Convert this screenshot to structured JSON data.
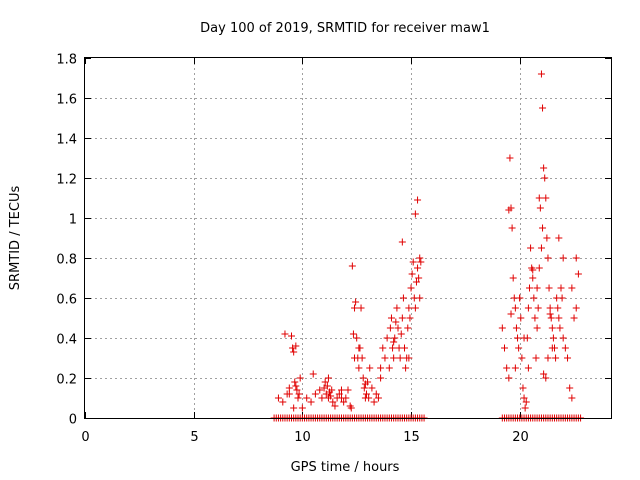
{
  "chart_data": {
    "type": "scatter",
    "title": "Day 100 of 2019, SRMTID for receiver maw1",
    "xlabel": "GPS time / hours",
    "ylabel": "SRMTID / TECUs",
    "xlim": [
      0,
      24.2
    ],
    "ylim": [
      0,
      1.8
    ],
    "xticks": [
      0,
      5,
      10,
      15,
      20
    ],
    "xtick_labels": [
      "0",
      "5",
      "10",
      "15",
      "20"
    ],
    "yticks": [
      0,
      0.2,
      0.4,
      0.6,
      0.8,
      1.0,
      1.2,
      1.4,
      1.6,
      1.8
    ],
    "ytick_labels": [
      "0",
      "0.2",
      "0.4",
      "0.6",
      "0.8",
      "1",
      "1.2",
      "1.4",
      "1.6",
      "1.8"
    ],
    "grid": true,
    "marker": "+",
    "color": "#e00000",
    "series": [
      {
        "name": "SRMTID",
        "x": [
          8.9,
          9.1,
          9.3,
          9.4,
          9.5,
          9.55,
          9.6,
          9.65,
          9.7,
          9.75,
          9.8,
          9.85,
          9.9,
          10.0,
          10.2,
          10.4,
          10.6,
          10.8,
          10.9,
          11.0,
          11.05,
          11.1,
          11.15,
          11.2,
          11.25,
          11.3,
          11.35,
          11.4,
          11.5,
          11.6,
          11.7,
          11.8,
          11.9,
          12.0,
          12.1,
          12.2,
          12.25,
          12.3,
          12.35,
          12.4,
          12.45,
          12.5,
          12.55,
          12.6,
          12.65,
          12.7,
          12.75,
          12.8,
          12.85,
          12.9,
          12.95,
          13.0,
          13.05,
          13.1,
          13.2,
          13.3,
          13.4,
          13.5,
          13.6,
          13.7,
          13.8,
          13.9,
          14.0,
          14.05,
          14.1,
          14.15,
          14.2,
          14.25,
          14.3,
          14.35,
          14.4,
          14.45,
          14.5,
          14.55,
          14.6,
          14.65,
          14.7,
          14.75,
          14.8,
          14.85,
          14.9,
          14.95,
          15.0,
          15.05,
          15.1,
          15.15,
          15.2,
          15.25,
          15.3,
          15.35,
          15.4,
          15.45,
          19.2,
          19.3,
          19.4,
          19.5,
          19.55,
          19.6,
          19.65,
          19.7,
          19.75,
          19.8,
          19.85,
          19.9,
          19.95,
          20.0,
          20.05,
          20.1,
          20.15,
          20.2,
          20.25,
          20.3,
          20.35,
          20.4,
          20.45,
          20.5,
          20.55,
          20.6,
          20.65,
          20.7,
          20.75,
          20.8,
          20.85,
          20.9,
          20.95,
          21.0,
          21.05,
          21.1,
          21.15,
          21.2,
          21.25,
          21.3,
          21.35,
          21.4,
          21.45,
          21.5,
          21.55,
          21.6,
          21.65,
          21.7,
          21.75,
          21.8,
          21.85,
          21.9,
          21.95,
          22.0,
          22.1,
          22.2,
          22.3,
          22.4,
          22.5,
          22.6,
          22.7,
          9.6,
          9.7,
          11.2,
          12.4,
          12.6,
          14.6,
          15.2,
          15.3,
          15.4,
          19.5,
          19.6,
          20.0,
          20.4,
          20.6,
          20.9,
          21.0,
          21.05,
          21.1,
          21.2,
          21.3,
          21.5,
          21.8,
          22.6,
          9.2,
          9.4,
          10.5,
          11.8,
          12.9,
          13.6,
          14.2,
          14.9,
          19.8,
          20.2,
          20.8,
          21.4,
          22.0,
          22.4
        ],
        "y": [
          0.1,
          0.08,
          0.12,
          0.15,
          0.41,
          0.35,
          0.33,
          0.18,
          0.16,
          0.14,
          0.1,
          0.12,
          0.2,
          0.05,
          0.1,
          0.08,
          0.12,
          0.14,
          0.1,
          0.15,
          0.18,
          0.12,
          0.16,
          0.1,
          0.13,
          0.11,
          0.14,
          0.08,
          0.06,
          0.1,
          0.12,
          0.1,
          0.08,
          0.1,
          0.14,
          0.06,
          0.05,
          0.76,
          0.42,
          0.55,
          0.58,
          0.4,
          0.3,
          0.25,
          0.35,
          0.55,
          0.3,
          0.2,
          0.15,
          0.1,
          0.12,
          0.18,
          0.1,
          0.25,
          0.15,
          0.08,
          0.12,
          0.1,
          0.2,
          0.35,
          0.3,
          0.4,
          0.25,
          0.45,
          0.5,
          0.35,
          0.3,
          0.4,
          0.48,
          0.55,
          0.45,
          0.35,
          0.3,
          0.42,
          0.5,
          0.6,
          0.35,
          0.25,
          0.3,
          0.45,
          0.55,
          0.5,
          0.65,
          0.72,
          0.78,
          0.6,
          0.55,
          0.68,
          0.75,
          0.7,
          0.6,
          0.78,
          0.45,
          0.35,
          0.25,
          0.2,
          1.3,
          1.05,
          0.95,
          0.7,
          0.6,
          0.55,
          0.45,
          0.4,
          0.35,
          0.6,
          0.5,
          0.3,
          0.15,
          0.1,
          0.05,
          0.08,
          0.4,
          0.55,
          0.65,
          0.85,
          0.75,
          0.7,
          0.6,
          0.5,
          0.3,
          0.65,
          0.55,
          0.75,
          1.05,
          1.72,
          1.55,
          1.25,
          1.2,
          1.1,
          0.9,
          0.8,
          0.65,
          0.55,
          0.5,
          0.45,
          0.4,
          0.35,
          0.3,
          0.6,
          0.55,
          0.5,
          0.45,
          0.65,
          0.6,
          0.4,
          0.35,
          0.3,
          0.15,
          0.1,
          0.5,
          0.55,
          0.72,
          0.05,
          0.36,
          0.2,
          0.3,
          0.35,
          0.88,
          1.02,
          1.09,
          0.8,
          1.04,
          0.52,
          0.6,
          0.25,
          0.74,
          1.1,
          0.85,
          0.95,
          0.22,
          0.2,
          0.3,
          0.35,
          0.9,
          0.8,
          0.42,
          0.12,
          0.22,
          0.14,
          0.17,
          0.25,
          0.38,
          0.3,
          0.25,
          0.4,
          0.45,
          0.52,
          0.8,
          0.65
        ],
        "baseline_y": 0,
        "baseline_ranges": [
          [
            8.7,
            15.6
          ],
          [
            19.2,
            22.8
          ]
        ]
      }
    ]
  }
}
